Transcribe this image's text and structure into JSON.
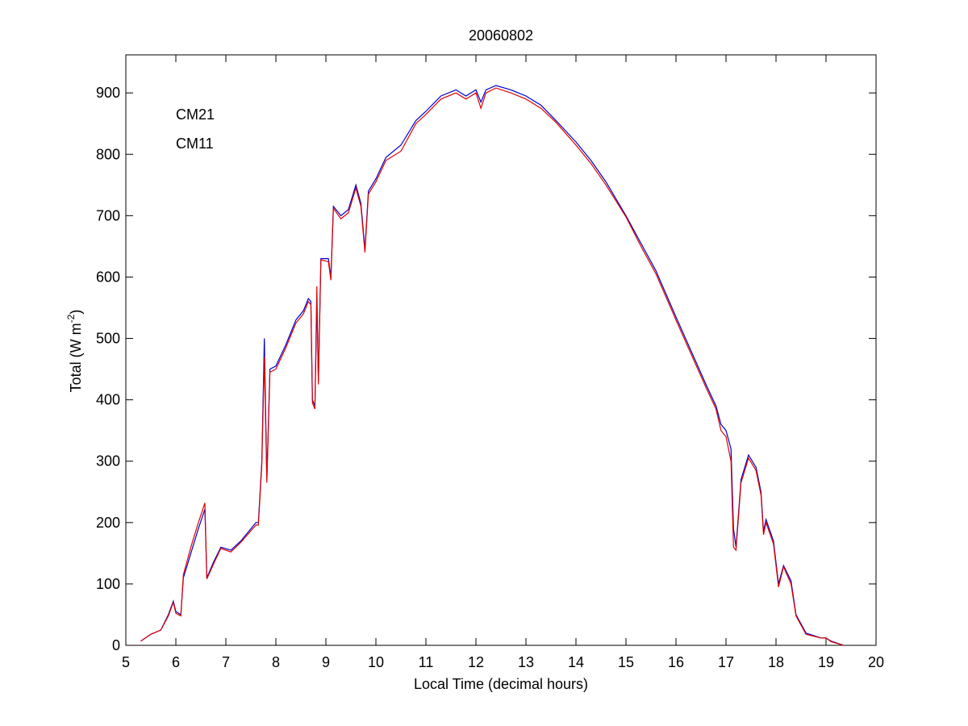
{
  "chart_data": {
    "type": "line",
    "title": "20060802",
    "xlabel": "Local Time (decimal hours)",
    "ylabel": [
      "Total (W m",
      "-2",
      ")"
    ],
    "x": [
      5.3,
      5.5,
      5.7,
      5.85,
      5.95,
      6.0,
      6.1,
      6.15,
      6.3,
      6.45,
      6.58,
      6.62,
      6.75,
      6.9,
      7.1,
      7.3,
      7.6,
      7.65,
      7.72,
      7.77,
      7.82,
      7.88,
      8.0,
      8.2,
      8.4,
      8.55,
      8.65,
      8.7,
      8.73,
      8.78,
      8.82,
      8.85,
      8.9,
      9.05,
      9.1,
      9.15,
      9.3,
      9.45,
      9.6,
      9.7,
      9.78,
      9.85,
      10.0,
      10.2,
      10.5,
      10.8,
      11.0,
      11.3,
      11.6,
      11.8,
      12.0,
      12.1,
      12.2,
      12.4,
      12.7,
      13.0,
      13.3,
      13.6,
      14.0,
      14.3,
      14.6,
      15.0,
      15.3,
      15.6,
      16.0,
      16.3,
      16.6,
      16.8,
      16.9,
      17.0,
      17.1,
      17.15,
      17.2,
      17.3,
      17.45,
      17.6,
      17.7,
      17.75,
      17.8,
      17.95,
      18.05,
      18.15,
      18.3,
      18.4,
      18.6,
      18.9,
      19.0,
      19.1,
      19.35
    ],
    "series": [
      {
        "name": "CM21",
        "color": "#0000cc",
        "values": [
          7,
          18,
          25,
          50,
          72,
          55,
          50,
          110,
          150,
          190,
          222,
          110,
          135,
          160,
          155,
          170,
          200,
          200,
          300,
          500,
          270,
          450,
          455,
          490,
          530,
          545,
          565,
          560,
          400,
          390,
          560,
          430,
          630,
          630,
          600,
          715,
          700,
          710,
          750,
          720,
          645,
          740,
          760,
          795,
          815,
          855,
          870,
          895,
          905,
          895,
          905,
          885,
          905,
          912,
          905,
          895,
          880,
          855,
          820,
          790,
          755,
          700,
          655,
          610,
          535,
          480,
          425,
          390,
          360,
          350,
          320,
          190,
          160,
          270,
          310,
          290,
          250,
          185,
          205,
          170,
          100,
          130,
          105,
          50,
          20,
          12,
          12,
          7,
          0
        ]
      },
      {
        "name": "CM11",
        "color": "#dd0000",
        "values": [
          7,
          18,
          25,
          48,
          70,
          52,
          48,
          115,
          160,
          200,
          232,
          108,
          132,
          158,
          152,
          168,
          196,
          196,
          295,
          470,
          265,
          445,
          450,
          485,
          525,
          540,
          560,
          555,
          395,
          385,
          585,
          425,
          628,
          625,
          595,
          712,
          695,
          705,
          745,
          715,
          640,
          735,
          755,
          790,
          805,
          850,
          865,
          890,
          900,
          890,
          900,
          875,
          900,
          908,
          900,
          890,
          875,
          852,
          815,
          785,
          750,
          698,
          650,
          605,
          530,
          475,
          420,
          385,
          350,
          340,
          300,
          160,
          155,
          265,
          305,
          285,
          245,
          180,
          200,
          165,
          95,
          128,
          100,
          48,
          18,
          12,
          12,
          6,
          0
        ]
      }
    ],
    "xlim": [
      5,
      20
    ],
    "xticks": [
      5,
      6,
      7,
      8,
      9,
      10,
      11,
      12,
      13,
      14,
      15,
      16,
      17,
      18,
      19,
      20
    ],
    "ylim": [
      0,
      962
    ],
    "yticks": [
      0,
      100,
      200,
      300,
      400,
      500,
      600,
      700,
      800,
      900
    ],
    "grid": false,
    "legend": "upper left"
  }
}
